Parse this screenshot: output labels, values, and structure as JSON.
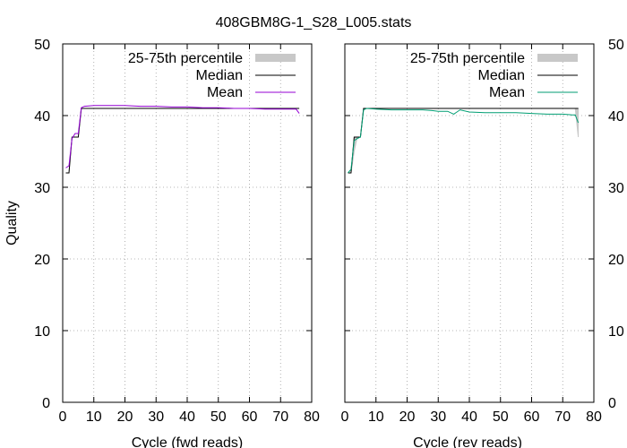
{
  "title": "408GBM8G-1_S28_L005.stats",
  "colors": {
    "fwd_mean": "#9400d3",
    "rev_mean": "#009e73",
    "median": "#000000",
    "band": "#c8c8c8",
    "grid": "#a0a0a0"
  },
  "chart_data": [
    {
      "type": "line",
      "xlabel": "Cycle (fwd reads)",
      "ylabel": "Quality",
      "xlim": [
        0,
        80
      ],
      "ylim": [
        0,
        50
      ],
      "xticks": [
        "0",
        "10",
        "20",
        "30",
        "40",
        "50",
        "60",
        "70",
        "80"
      ],
      "yticks": [
        "0",
        "10",
        "20",
        "30",
        "40",
        "50"
      ],
      "grid": true,
      "legend_position": "top-right",
      "legend": {
        "band": "25-75th percentile",
        "median": "Median",
        "mean": "Mean"
      },
      "cycles": [
        1,
        2,
        3,
        4,
        5,
        6,
        7,
        10,
        15,
        20,
        25,
        30,
        35,
        40,
        45,
        50,
        55,
        60,
        65,
        70,
        75,
        76
      ],
      "p25": [
        32,
        32,
        37,
        37,
        37,
        41,
        41,
        41,
        41,
        41,
        41,
        41,
        41,
        41,
        41,
        41,
        41,
        41,
        41,
        41,
        41,
        41
      ],
      "p75": [
        32,
        32,
        37,
        37,
        37,
        41,
        41,
        41,
        41,
        41,
        41,
        41,
        41,
        41,
        41,
        41,
        41,
        41,
        41,
        41,
        41,
        41
      ],
      "median": [
        32,
        32,
        37,
        37,
        37,
        41,
        41,
        41,
        41,
        41,
        41,
        41,
        41,
        41,
        41,
        41,
        41,
        41,
        41,
        41,
        41,
        41
      ],
      "mean": [
        32.7,
        33,
        36.8,
        37.5,
        37.5,
        41.1,
        41.3,
        41.4,
        41.4,
        41.4,
        41.3,
        41.3,
        41.2,
        41.2,
        41.1,
        41.1,
        41.0,
        41.0,
        40.9,
        40.9,
        40.9,
        40.3
      ]
    },
    {
      "type": "line",
      "xlabel": "Cycle (rev reads)",
      "ylabel": "",
      "xlim": [
        0,
        80
      ],
      "ylim": [
        0,
        50
      ],
      "xticks": [
        "0",
        "10",
        "20",
        "30",
        "40",
        "50",
        "60",
        "70",
        "80"
      ],
      "yticks": [
        "0",
        "10",
        "20",
        "30",
        "40",
        "50"
      ],
      "grid": true,
      "legend_position": "top-right",
      "legend": {
        "band": "25-75th percentile",
        "median": "Median",
        "mean": "Mean"
      },
      "cycles": [
        1,
        2,
        3,
        4,
        5,
        6,
        7,
        10,
        15,
        20,
        25,
        28,
        30,
        33,
        35,
        37,
        40,
        45,
        50,
        55,
        60,
        65,
        70,
        73,
        74,
        75
      ],
      "p25": [
        32,
        32,
        35,
        37,
        37,
        41,
        41,
        41,
        41,
        41,
        41,
        41,
        41,
        41,
        41,
        41,
        41,
        41,
        41,
        41,
        41,
        41,
        41,
        41,
        41,
        37
      ],
      "p75": [
        32,
        32,
        37,
        37,
        37,
        41,
        41,
        41,
        41,
        41,
        41,
        41,
        41,
        41,
        41,
        41,
        41,
        41,
        41,
        41,
        41,
        41,
        41,
        41,
        41,
        41
      ],
      "median": [
        32,
        32,
        37,
        37,
        37,
        41,
        41,
        41,
        41,
        41,
        41,
        41,
        41,
        41,
        41,
        41,
        41,
        41,
        41,
        41,
        41,
        41,
        41,
        41,
        41,
        41
      ],
      "mean": [
        32,
        32.5,
        36.5,
        36.8,
        37,
        40.8,
        41,
        40.9,
        40.8,
        40.8,
        40.8,
        40.7,
        40.6,
        40.6,
        40.2,
        40.8,
        40.5,
        40.4,
        40.4,
        40.4,
        40.3,
        40.2,
        40.2,
        40.1,
        40.1,
        39
      ]
    }
  ]
}
